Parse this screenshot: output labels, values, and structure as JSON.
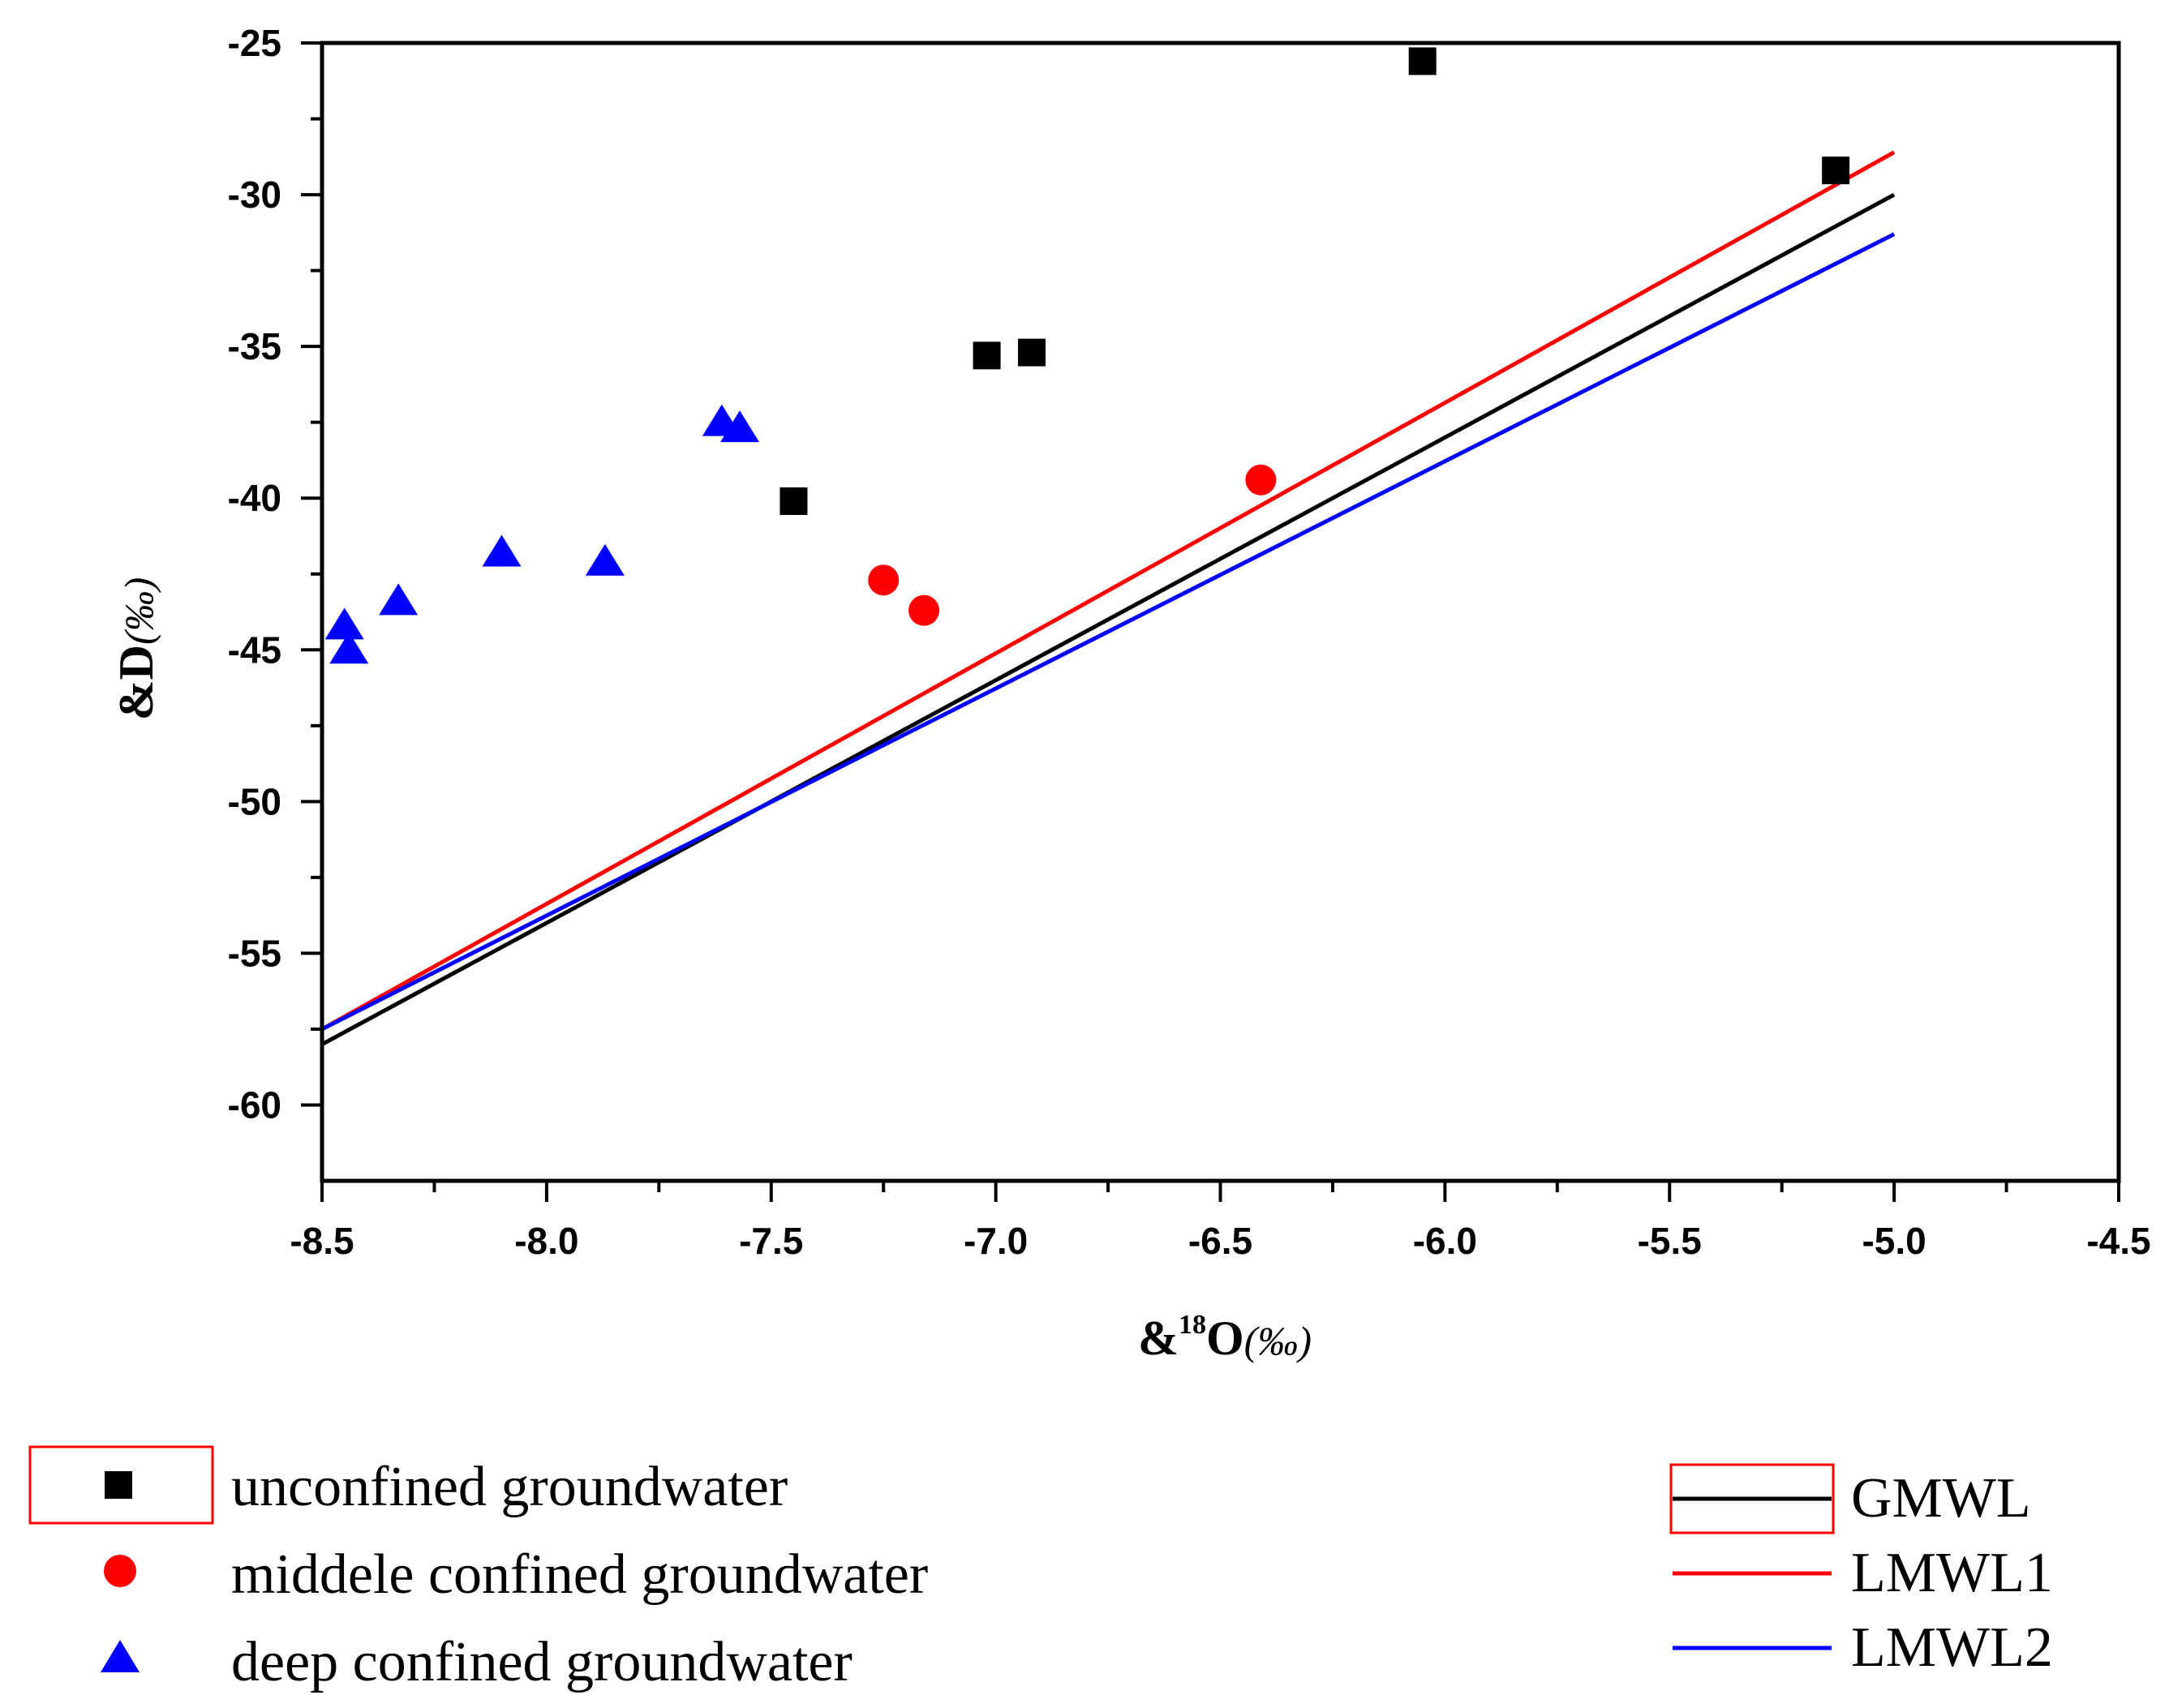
{
  "chart_data": {
    "type": "scatter",
    "title": "",
    "xlabel": {
      "prefix": "&",
      "superscript": "18",
      "main": "O",
      "unit": "(‰)"
    },
    "ylabel": {
      "prefix": "&",
      "main": "D",
      "unit": "(‰)"
    },
    "xlim": [
      -8.5,
      -4.5
    ],
    "ylim": [
      -62.5,
      -25
    ],
    "x_ticks": [
      -8.5,
      -8.0,
      -7.5,
      -7.0,
      -6.5,
      -6.0,
      -5.5,
      -5.0,
      -4.5
    ],
    "x_tick_labels": [
      "-8.5",
      "-8.0",
      "-7.5",
      "-7.0",
      "-6.5",
      "-6.0",
      "-5.5",
      "-5.0",
      "-4.5"
    ],
    "y_ticks": [
      -25,
      -30,
      -35,
      -40,
      -45,
      -50,
      -55,
      -60
    ],
    "y_tick_labels": [
      "-25",
      "-30",
      "-35",
      "-40",
      "-45",
      "-50",
      "-55",
      "-60"
    ],
    "series": [
      {
        "name": "unconfined groundwater",
        "marker": "square",
        "color": "#000000",
        "points": [
          [
            -7.45,
            -40.1
          ],
          [
            -7.02,
            -35.3
          ],
          [
            -6.92,
            -35.2
          ],
          [
            -6.05,
            -25.6
          ],
          [
            -5.13,
            -29.2
          ]
        ]
      },
      {
        "name": "middele confined groundwater",
        "marker": "circle",
        "color": "#ff0000",
        "points": [
          [
            -7.25,
            -42.7
          ],
          [
            -7.16,
            -43.7
          ],
          [
            -6.41,
            -39.4
          ]
        ]
      },
      {
        "name": "deep confined groundwater",
        "marker": "triangle",
        "color": "#0000ff",
        "points": [
          [
            -8.45,
            -44.2
          ],
          [
            -8.44,
            -45.0
          ],
          [
            -8.33,
            -43.4
          ],
          [
            -8.1,
            -41.8
          ],
          [
            -7.87,
            -42.1
          ],
          [
            -7.61,
            -37.5
          ],
          [
            -7.57,
            -37.7
          ]
        ]
      }
    ],
    "lines": [
      {
        "name": "GMWL",
        "color": "#000000",
        "x": [
          -8.5,
          -5.0
        ],
        "y": [
          -58.0,
          -30.0
        ]
      },
      {
        "name": "LMWL1",
        "color": "#ff0000",
        "x": [
          -8.5,
          -5.0
        ],
        "y": [
          -57.5,
          -28.6
        ]
      },
      {
        "name": "LMWL2",
        "color": "#0000ff",
        "x": [
          -8.5,
          -5.0
        ],
        "y": [
          -57.5,
          -31.3
        ]
      }
    ]
  }
}
